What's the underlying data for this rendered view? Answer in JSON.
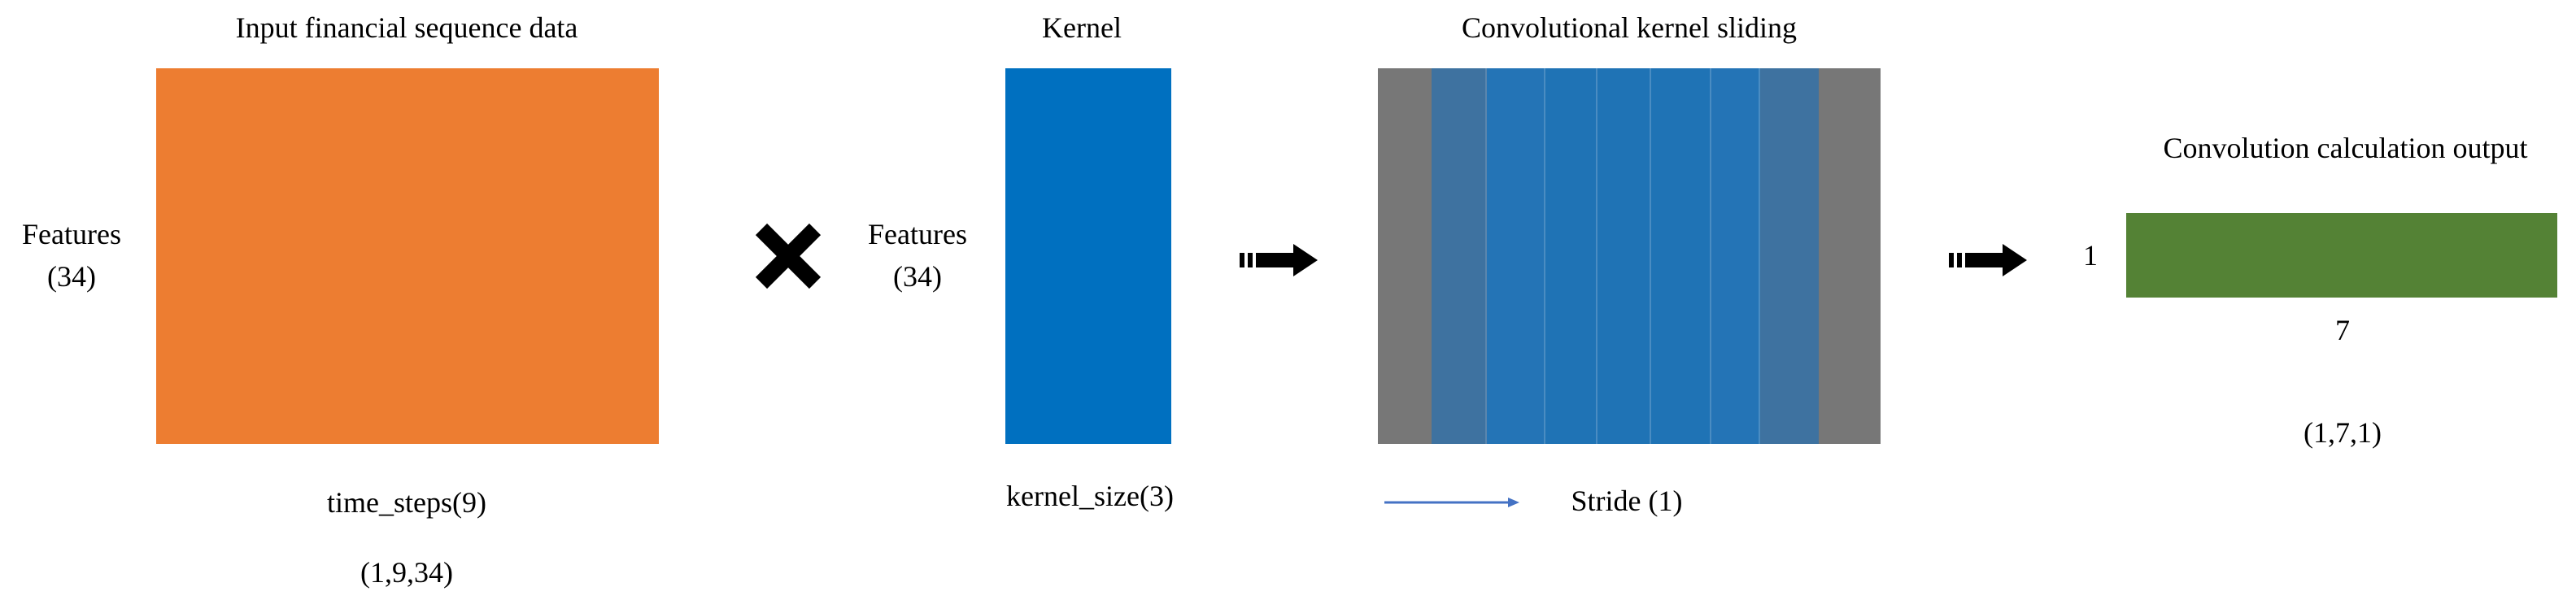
{
  "input": {
    "title": "Input financial sequence data",
    "features_label": "Features",
    "features_count": "(34)",
    "x_label": "time_steps(9)",
    "shape": "(1,9,34)",
    "color": "#ED7D31"
  },
  "kernel": {
    "title": "Kernel",
    "features_label": "Features",
    "features_count": "(34)",
    "x_label": "kernel_size(3)",
    "color": "#0070C0"
  },
  "sliding": {
    "title": "Convolutional kernel sliding",
    "stride_label": "Stride (1)",
    "edge_color": "#777777",
    "band_colors": [
      "#3E72A0",
      "#2474B6",
      "#1F73B5"
    ]
  },
  "output": {
    "title": "Convolution calculation output",
    "height_label": "1",
    "width_label": "7",
    "shape": "(1,7,1)",
    "color": "#548235"
  },
  "icons": {
    "operator": "multiply-icon",
    "flow": "right-arrow-icon"
  }
}
